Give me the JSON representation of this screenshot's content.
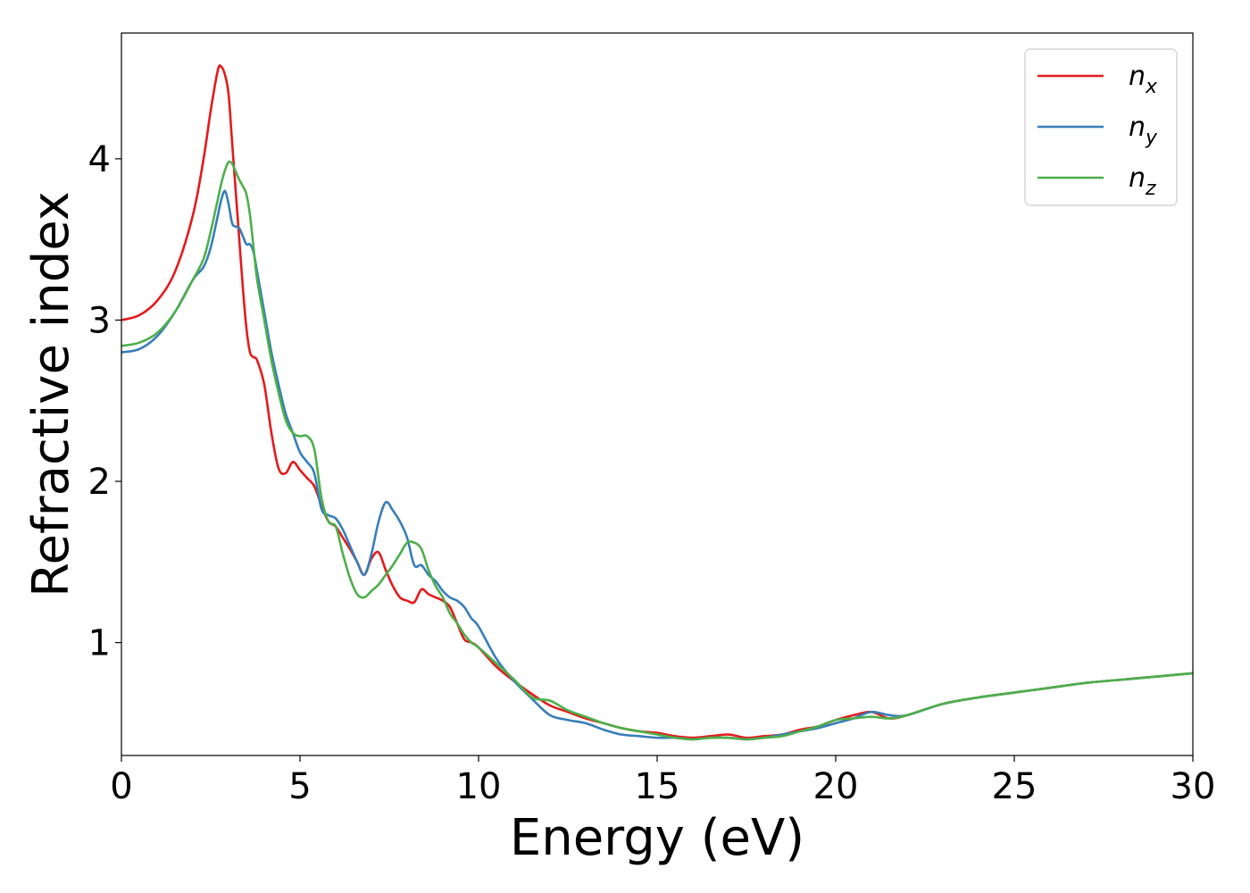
{
  "chart_data": {
    "type": "line",
    "title": "",
    "xlabel": "Energy (eV)",
    "ylabel": "Refractive index",
    "xlim": [
      0,
      30
    ],
    "ylim": [
      0.3,
      4.78
    ],
    "xticks": [
      0,
      5,
      10,
      15,
      20,
      25,
      30
    ],
    "yticks": [
      1,
      2,
      3,
      4
    ],
    "grid": false,
    "legend_position": "top-right",
    "series": [
      {
        "name": "n_x",
        "label_main": "n",
        "label_sub": "x",
        "color": "#e41a1c",
        "x": [
          0,
          0.5,
          1,
          1.5,
          2,
          2.3,
          2.5,
          2.7,
          2.8,
          2.9,
          3.0,
          3.1,
          3.2,
          3.3,
          3.4,
          3.5,
          3.6,
          3.7,
          3.8,
          4.0,
          4.2,
          4.4,
          4.6,
          4.8,
          5.0,
          5.2,
          5.4,
          5.6,
          5.8,
          6.0,
          6.2,
          6.4,
          6.6,
          6.8,
          7.0,
          7.2,
          7.4,
          7.6,
          7.8,
          8.0,
          8.2,
          8.4,
          8.6,
          8.8,
          9.0,
          9.2,
          9.4,
          9.6,
          9.8,
          10.0,
          10.5,
          11.0,
          11.5,
          12.0,
          12.5,
          13.0,
          13.5,
          14.0,
          14.5,
          15.0,
          15.5,
          16.0,
          16.5,
          17.0,
          17.5,
          18.0,
          18.5,
          19.0,
          19.5,
          20.0,
          20.5,
          21.0,
          21.5,
          22.0,
          23.0,
          24.0,
          25.0,
          26.0,
          27.0,
          28.0,
          29.0,
          30.0
        ],
        "y": [
          3.0,
          3.03,
          3.12,
          3.3,
          3.65,
          4.0,
          4.3,
          4.55,
          4.57,
          4.52,
          4.4,
          4.1,
          3.8,
          3.5,
          3.2,
          2.95,
          2.8,
          2.77,
          2.75,
          2.6,
          2.3,
          2.08,
          2.05,
          2.12,
          2.07,
          2.02,
          1.97,
          1.85,
          1.75,
          1.72,
          1.65,
          1.58,
          1.5,
          1.42,
          1.52,
          1.56,
          1.45,
          1.35,
          1.28,
          1.26,
          1.25,
          1.33,
          1.3,
          1.28,
          1.26,
          1.22,
          1.12,
          1.02,
          1.0,
          0.97,
          0.85,
          0.76,
          0.68,
          0.61,
          0.57,
          0.53,
          0.5,
          0.47,
          0.45,
          0.44,
          0.42,
          0.41,
          0.42,
          0.43,
          0.41,
          0.42,
          0.43,
          0.46,
          0.48,
          0.52,
          0.55,
          0.57,
          0.53,
          0.55,
          0.62,
          0.66,
          0.69,
          0.72,
          0.75,
          0.77,
          0.79,
          0.81
        ]
      },
      {
        "name": "n_y",
        "label_main": "n",
        "label_sub": "y",
        "color": "#377eb8",
        "x": [
          0,
          0.5,
          1,
          1.5,
          2,
          2.3,
          2.5,
          2.7,
          2.8,
          2.9,
          3.0,
          3.1,
          3.2,
          3.3,
          3.4,
          3.5,
          3.6,
          3.7,
          3.8,
          4.0,
          4.2,
          4.4,
          4.6,
          4.8,
          5.0,
          5.2,
          5.4,
          5.6,
          5.8,
          6.0,
          6.2,
          6.4,
          6.6,
          6.8,
          7.0,
          7.2,
          7.4,
          7.6,
          7.8,
          8.0,
          8.2,
          8.4,
          8.6,
          8.8,
          9.0,
          9.2,
          9.4,
          9.6,
          9.8,
          10.0,
          10.5,
          11.0,
          11.5,
          12.0,
          12.5,
          13.0,
          13.5,
          14.0,
          14.5,
          15.0,
          15.5,
          16.0,
          16.5,
          17.0,
          17.5,
          18.0,
          18.5,
          19.0,
          19.5,
          20.0,
          20.5,
          21.0,
          21.5,
          22.0,
          23.0,
          24.0,
          25.0,
          26.0,
          27.0,
          28.0,
          29.0,
          30.0
        ],
        "y": [
          2.8,
          2.82,
          2.9,
          3.05,
          3.25,
          3.33,
          3.45,
          3.65,
          3.75,
          3.8,
          3.72,
          3.6,
          3.58,
          3.57,
          3.52,
          3.47,
          3.47,
          3.42,
          3.3,
          3.05,
          2.8,
          2.6,
          2.42,
          2.3,
          2.18,
          2.12,
          2.05,
          1.83,
          1.79,
          1.77,
          1.7,
          1.6,
          1.5,
          1.42,
          1.55,
          1.75,
          1.87,
          1.82,
          1.75,
          1.65,
          1.48,
          1.48,
          1.42,
          1.38,
          1.32,
          1.28,
          1.26,
          1.22,
          1.15,
          1.1,
          0.9,
          0.76,
          0.65,
          0.55,
          0.52,
          0.5,
          0.46,
          0.43,
          0.42,
          0.41,
          0.41,
          0.4,
          0.41,
          0.41,
          0.4,
          0.41,
          0.43,
          0.45,
          0.47,
          0.5,
          0.53,
          0.57,
          0.55,
          0.55,
          0.62,
          0.66,
          0.69,
          0.72,
          0.75,
          0.77,
          0.79,
          0.81
        ]
      },
      {
        "name": "n_z",
        "label_main": "n",
        "label_sub": "z",
        "color": "#4daf4a",
        "x": [
          0,
          0.5,
          1,
          1.5,
          2,
          2.3,
          2.5,
          2.7,
          2.8,
          2.9,
          3.0,
          3.1,
          3.2,
          3.3,
          3.4,
          3.5,
          3.6,
          3.7,
          3.8,
          4.0,
          4.2,
          4.4,
          4.6,
          4.8,
          5.0,
          5.2,
          5.4,
          5.6,
          5.8,
          6.0,
          6.2,
          6.4,
          6.6,
          6.8,
          7.0,
          7.2,
          7.4,
          7.6,
          7.8,
          8.0,
          8.2,
          8.4,
          8.6,
          8.8,
          9.0,
          9.2,
          9.4,
          9.6,
          9.8,
          10.0,
          10.5,
          11.0,
          11.5,
          12.0,
          12.5,
          13.0,
          13.5,
          14.0,
          14.5,
          15.0,
          15.5,
          16.0,
          16.5,
          17.0,
          17.5,
          18.0,
          18.5,
          19.0,
          19.5,
          20.0,
          20.5,
          21.0,
          21.5,
          22.0,
          23.0,
          24.0,
          25.0,
          26.0,
          27.0,
          28.0,
          29.0,
          30.0
        ],
        "y": [
          2.84,
          2.86,
          2.92,
          3.05,
          3.25,
          3.38,
          3.55,
          3.75,
          3.85,
          3.93,
          3.98,
          3.97,
          3.92,
          3.87,
          3.83,
          3.78,
          3.65,
          3.45,
          3.25,
          3.0,
          2.75,
          2.55,
          2.38,
          2.3,
          2.28,
          2.28,
          2.2,
          1.9,
          1.75,
          1.72,
          1.55,
          1.4,
          1.3,
          1.28,
          1.32,
          1.36,
          1.42,
          1.48,
          1.55,
          1.62,
          1.62,
          1.58,
          1.45,
          1.35,
          1.28,
          1.18,
          1.12,
          1.05,
          1.0,
          0.97,
          0.87,
          0.77,
          0.66,
          0.64,
          0.58,
          0.54,
          0.5,
          0.47,
          0.45,
          0.43,
          0.41,
          0.4,
          0.41,
          0.41,
          0.4,
          0.41,
          0.42,
          0.45,
          0.48,
          0.52,
          0.53,
          0.54,
          0.53,
          0.55,
          0.62,
          0.66,
          0.69,
          0.72,
          0.75,
          0.77,
          0.79,
          0.81
        ]
      }
    ]
  }
}
